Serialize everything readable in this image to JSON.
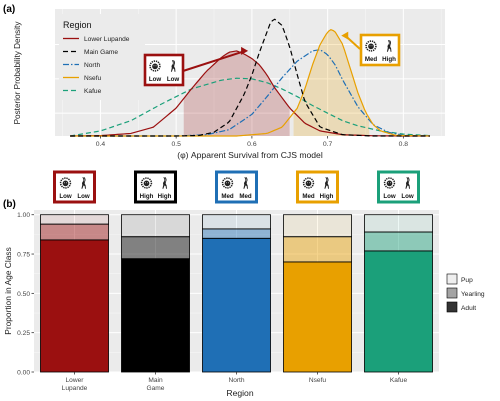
{
  "panel_labels": {
    "a": "(a)",
    "b": "(b)"
  },
  "icons": {
    "predator": "lion-icon",
    "prey": "antelope-icon"
  },
  "colors": {
    "lower_lupande": "#9b1010",
    "main_game": "#000000",
    "north": "#1f6fb5",
    "nsefu": "#e8a000",
    "kafue": "#1ba07a",
    "panel_bg": "#ebebeb",
    "grid": "#ffffff"
  },
  "chart_data": [
    {
      "type": "line",
      "panel": "(a)",
      "xlabel": "(φ) Apparent Survival from CJS model",
      "ylabel": "Posterior Probability Density",
      "xlim": [
        0.34,
        0.855
      ],
      "x_ticks": [
        "0.4",
        "0.5",
        "0.6",
        "0.7",
        "0.8"
      ],
      "x_tick_values": [
        0.4,
        0.5,
        0.6,
        0.7,
        0.8
      ],
      "ylim": [
        0,
        1
      ],
      "grid": true,
      "legend": {
        "title": "Region",
        "placement": "top-left",
        "entries": [
          "Lower Lupande",
          "Main Game",
          "North",
          "Nsefu",
          "Kafue"
        ]
      },
      "series": [
        {
          "name": "Lower Lupande",
          "color": "#9b1010",
          "style": "solid",
          "shaded_interval": [
            0.51,
            0.65
          ],
          "x": [
            0.36,
            0.4,
            0.44,
            0.47,
            0.5,
            0.52,
            0.54,
            0.56,
            0.57,
            0.58,
            0.59,
            0.6,
            0.61,
            0.62,
            0.63,
            0.65,
            0.67,
            0.69,
            0.72,
            0.76,
            0.8,
            0.835
          ],
          "y": [
            0,
            0.003,
            0.02,
            0.07,
            0.22,
            0.37,
            0.51,
            0.62,
            0.66,
            0.67,
            0.645,
            0.61,
            0.56,
            0.48,
            0.38,
            0.22,
            0.1,
            0.04,
            0.01,
            0.002,
            0,
            0
          ]
        },
        {
          "name": "Main Game",
          "color": "#000000",
          "style": "dashed",
          "x": [
            0.36,
            0.5,
            0.53,
            0.55,
            0.57,
            0.59,
            0.6,
            0.61,
            0.62,
            0.625,
            0.63,
            0.64,
            0.65,
            0.66,
            0.67,
            0.69,
            0.72,
            0.76,
            0.835
          ],
          "y": [
            0,
            0,
            0.004,
            0.03,
            0.11,
            0.33,
            0.48,
            0.66,
            0.82,
            0.9,
            0.92,
            0.87,
            0.7,
            0.48,
            0.27,
            0.07,
            0.01,
            0,
            0
          ]
        },
        {
          "name": "North",
          "color": "#1f6fb5",
          "style": "dotdash",
          "x": [
            0.36,
            0.5,
            0.54,
            0.57,
            0.6,
            0.62,
            0.64,
            0.66,
            0.68,
            0.69,
            0.7,
            0.71,
            0.72,
            0.74,
            0.76,
            0.78,
            0.8,
            0.835
          ],
          "y": [
            0,
            0,
            0.01,
            0.05,
            0.17,
            0.31,
            0.46,
            0.59,
            0.67,
            0.68,
            0.64,
            0.56,
            0.44,
            0.23,
            0.09,
            0.03,
            0.005,
            0
          ]
        },
        {
          "name": "Nsefu",
          "color": "#e8a000",
          "style": "solid",
          "shaded_interval": [
            0.655,
            0.755
          ],
          "x": [
            0.36,
            0.58,
            0.62,
            0.64,
            0.66,
            0.67,
            0.68,
            0.69,
            0.7,
            0.705,
            0.71,
            0.72,
            0.73,
            0.74,
            0.75,
            0.76,
            0.77,
            0.79,
            0.835
          ],
          "y": [
            0,
            0,
            0.02,
            0.07,
            0.22,
            0.37,
            0.56,
            0.72,
            0.82,
            0.84,
            0.82,
            0.72,
            0.53,
            0.34,
            0.19,
            0.09,
            0.04,
            0.005,
            0
          ]
        },
        {
          "name": "Kafue",
          "color": "#1ba07a",
          "style": "dashed",
          "x": [
            0.36,
            0.4,
            0.44,
            0.48,
            0.52,
            0.56,
            0.58,
            0.6,
            0.62,
            0.64,
            0.66,
            0.68,
            0.7,
            0.72,
            0.74,
            0.77,
            0.8,
            0.835
          ],
          "y": [
            0,
            0.04,
            0.12,
            0.25,
            0.37,
            0.44,
            0.455,
            0.45,
            0.42,
            0.37,
            0.31,
            0.24,
            0.18,
            0.12,
            0.08,
            0.04,
            0.015,
            0.003
          ]
        }
      ],
      "annotations": [
        {
          "label": "Lower Lupande",
          "color": "#9b1010",
          "predator": "Low",
          "prey": "Low",
          "arrow_to": [
            0.595,
            0.67
          ]
        },
        {
          "label": "Nsefu",
          "color": "#e8a000",
          "predator": "Med",
          "prey": "High",
          "arrow_to": [
            0.718,
            0.79
          ]
        }
      ]
    },
    {
      "type": "bar",
      "stacked": true,
      "panel": "(b)",
      "xlabel": "Region",
      "ylabel": "Proportion in Age Class",
      "categories": [
        "Lower\nLupande",
        "Main\nGame",
        "North",
        "Nsefu",
        "Kafue"
      ],
      "ylim": [
        0,
        1.03
      ],
      "y_ticks": [
        "0.00",
        "0.25",
        "0.50",
        "0.75",
        "1.00"
      ],
      "y_tick_values": [
        0,
        0.25,
        0.5,
        0.75,
        1.0
      ],
      "grid": true,
      "legend": {
        "title": "",
        "placement": "right",
        "entries": [
          "Pup",
          "Yearling",
          "Adult"
        ]
      },
      "series": [
        {
          "name": "Adult",
          "values": [
            0.84,
            0.72,
            0.85,
            0.7,
            0.77
          ]
        },
        {
          "name": "Yearling",
          "values": [
            0.1,
            0.14,
            0.06,
            0.16,
            0.12
          ]
        },
        {
          "name": "Pup",
          "values": [
            0.06,
            0.14,
            0.09,
            0.14,
            0.11
          ]
        }
      ],
      "header_boxes": [
        {
          "color": "#9b1010",
          "predator": "Low",
          "prey": "Low"
        },
        {
          "color": "#000000",
          "predator": "High",
          "prey": "High"
        },
        {
          "color": "#1f6fb5",
          "predator": "Med",
          "prey": "Med"
        },
        {
          "color": "#e8a000",
          "predator": "Med",
          "prey": "High"
        },
        {
          "color": "#1ba07a",
          "predator": "Low",
          "prey": "Low"
        }
      ]
    }
  ]
}
